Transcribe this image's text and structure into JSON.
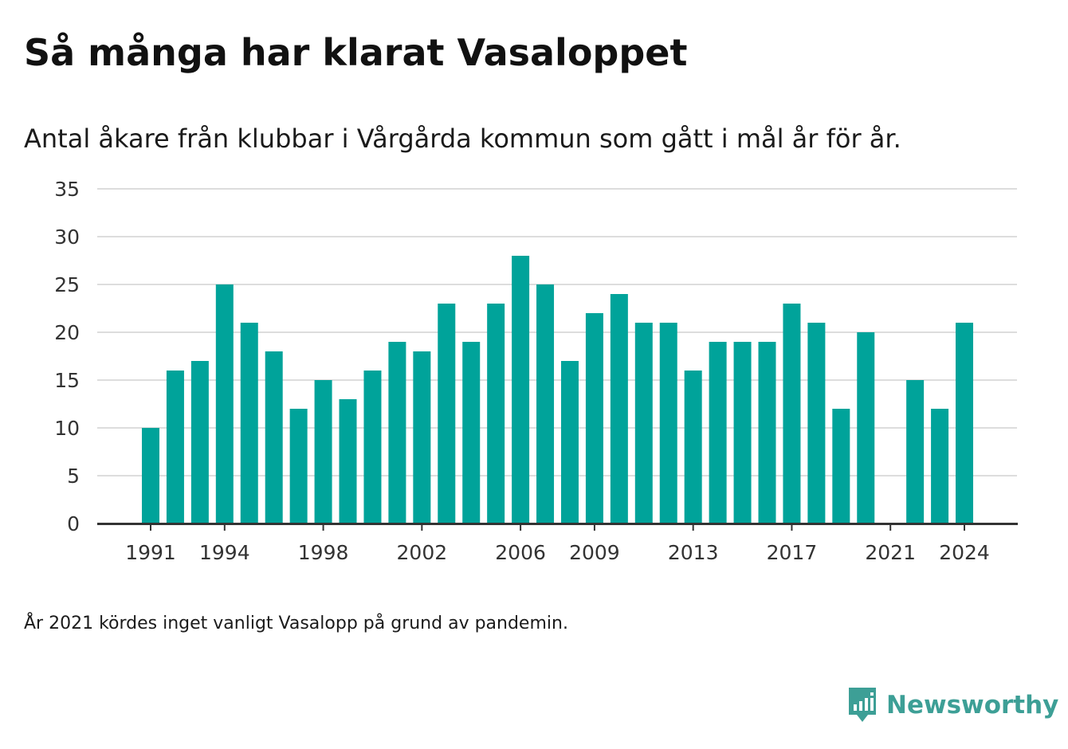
{
  "header": {
    "title": "Så många har klarat Vasaloppet",
    "subtitle": "Antal åkare från klubbar i Vårgårda kommun som gått i mål år för år."
  },
  "footer": {
    "note": "År 2021 kördes inget vanligt Vasalopp på grund av pandemin.",
    "logo_text": "Newsworthy",
    "logo_icon": "newsworthy-logo-icon"
  },
  "colors": {
    "bar": "#00a39a",
    "grid": "#dddddd",
    "axis": "#333333",
    "text": "#1b1b1b",
    "logo": "#3d9f96"
  },
  "chart_data": {
    "type": "bar",
    "categories": [
      1991,
      1992,
      1993,
      1994,
      1995,
      1996,
      1997,
      1998,
      1999,
      2000,
      2001,
      2002,
      2003,
      2004,
      2005,
      2006,
      2007,
      2008,
      2009,
      2010,
      2011,
      2012,
      2013,
      2014,
      2015,
      2016,
      2017,
      2018,
      2019,
      2020,
      2021,
      2022,
      2023,
      2024
    ],
    "values": [
      10,
      16,
      17,
      25,
      21,
      18,
      12,
      15,
      13,
      16,
      19,
      18,
      23,
      19,
      23,
      28,
      25,
      17,
      22,
      24,
      21,
      21,
      16,
      19,
      19,
      19,
      23,
      21,
      12,
      20,
      null,
      15,
      12,
      21
    ],
    "x_tick_labels": [
      "1991",
      "1994",
      "1998",
      "2002",
      "2006",
      "2009",
      "2013",
      "2017",
      "2021",
      "2024"
    ],
    "y_ticks": [
      0,
      5,
      10,
      15,
      20,
      25,
      30,
      35
    ],
    "ylim": [
      0,
      35
    ],
    "grid": true
  }
}
